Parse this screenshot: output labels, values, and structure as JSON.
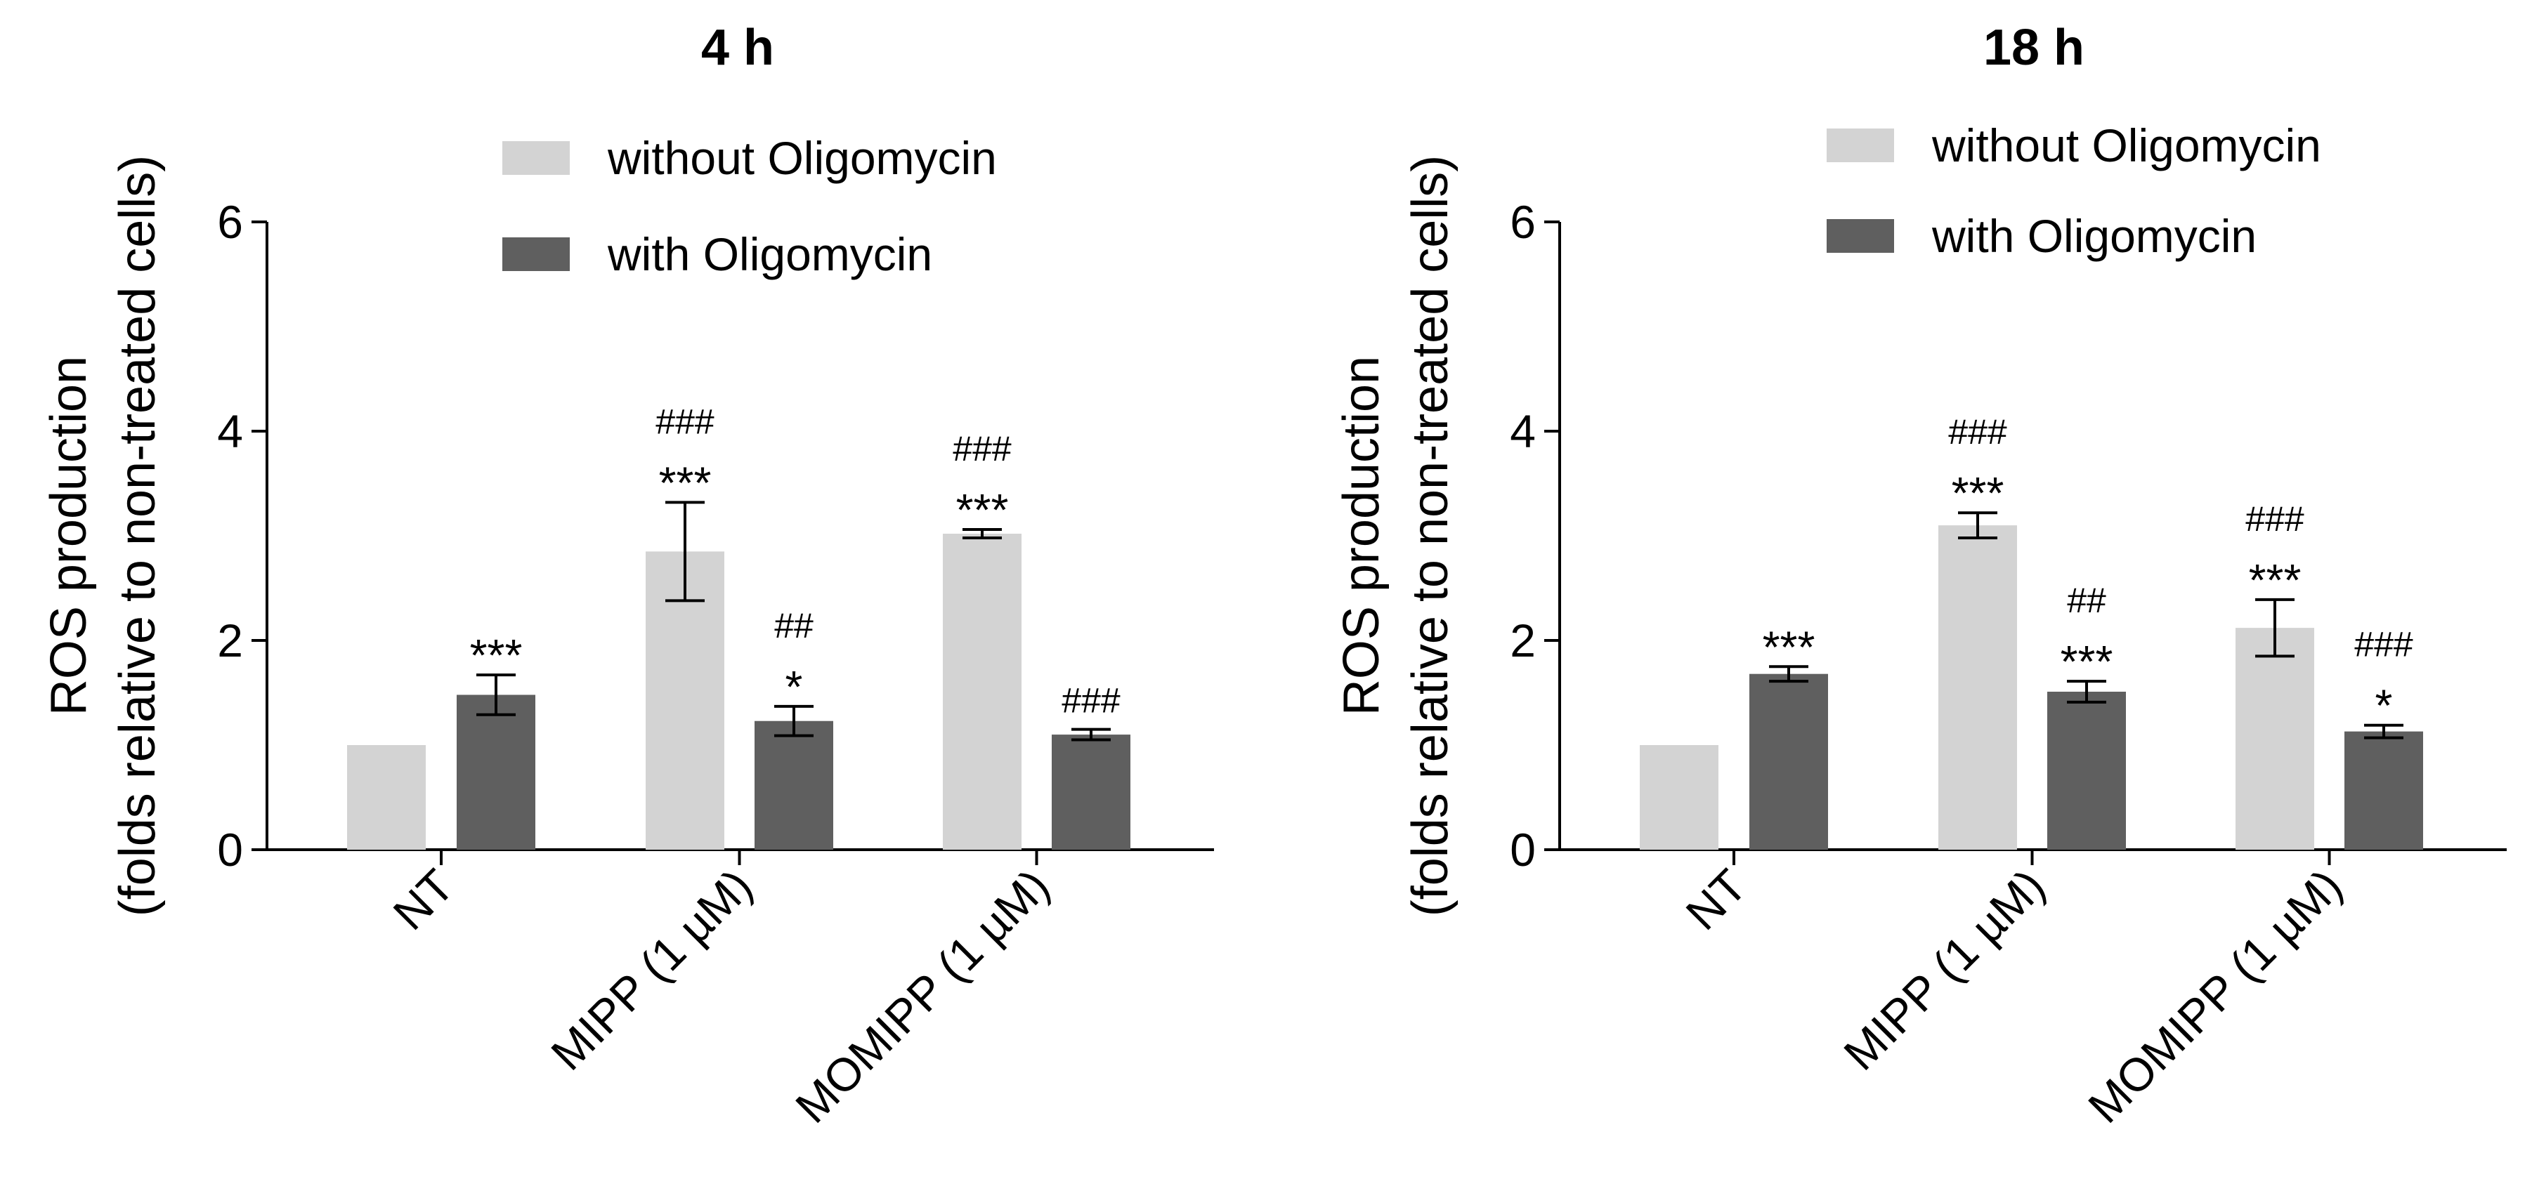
{
  "colors": {
    "without": "#d3d3d3",
    "with": "#5f5f5f"
  },
  "chart_data": [
    {
      "type": "bar",
      "title": "4 h",
      "ylabel_line1": "ROS production",
      "ylabel_line2": "(folds relative to non-treated cells)",
      "ylim": [
        0,
        6
      ],
      "yticks": [
        "0",
        "2",
        "4",
        "6"
      ],
      "categories": [
        "NT",
        "MIPP (1 µM)",
        "MOMIPP (1 µM)"
      ],
      "legend": {
        "position": "top-right"
      },
      "series": [
        {
          "name": "without Oligomycin",
          "values": [
            1.0,
            2.85,
            3.02
          ],
          "errors": [
            0.0,
            0.47,
            0.04
          ],
          "annotations": [
            [],
            [
              "***",
              "###"
            ],
            [
              "***",
              "###"
            ]
          ]
        },
        {
          "name": "with Oligomycin",
          "values": [
            1.48,
            1.23,
            1.1
          ],
          "errors": [
            0.19,
            0.14,
            0.05
          ],
          "annotations": [
            [
              "***"
            ],
            [
              "*",
              "##"
            ],
            [
              "###"
            ]
          ]
        }
      ]
    },
    {
      "type": "bar",
      "title": "18 h",
      "ylabel_line1": "ROS production",
      "ylabel_line2": "(folds relative to non-treated cells)",
      "ylim": [
        0,
        6
      ],
      "yticks": [
        "0",
        "2",
        "4",
        "6"
      ],
      "categories": [
        "NT",
        "MIPP (1 µM)",
        "MOMIPP (1 µM)"
      ],
      "legend": {
        "position": "top-right"
      },
      "series": [
        {
          "name": "without Oligomycin",
          "values": [
            1.0,
            3.1,
            2.12
          ],
          "errors": [
            0.0,
            0.12,
            0.27
          ],
          "annotations": [
            [],
            [
              "***",
              "###"
            ],
            [
              "***",
              "###"
            ]
          ]
        },
        {
          "name": "with Oligomycin",
          "values": [
            1.68,
            1.51,
            1.13
          ],
          "errors": [
            0.07,
            0.1,
            0.06
          ],
          "annotations": [
            [
              "***"
            ],
            [
              "***",
              "##"
            ],
            [
              "*",
              "###"
            ]
          ]
        }
      ]
    }
  ]
}
